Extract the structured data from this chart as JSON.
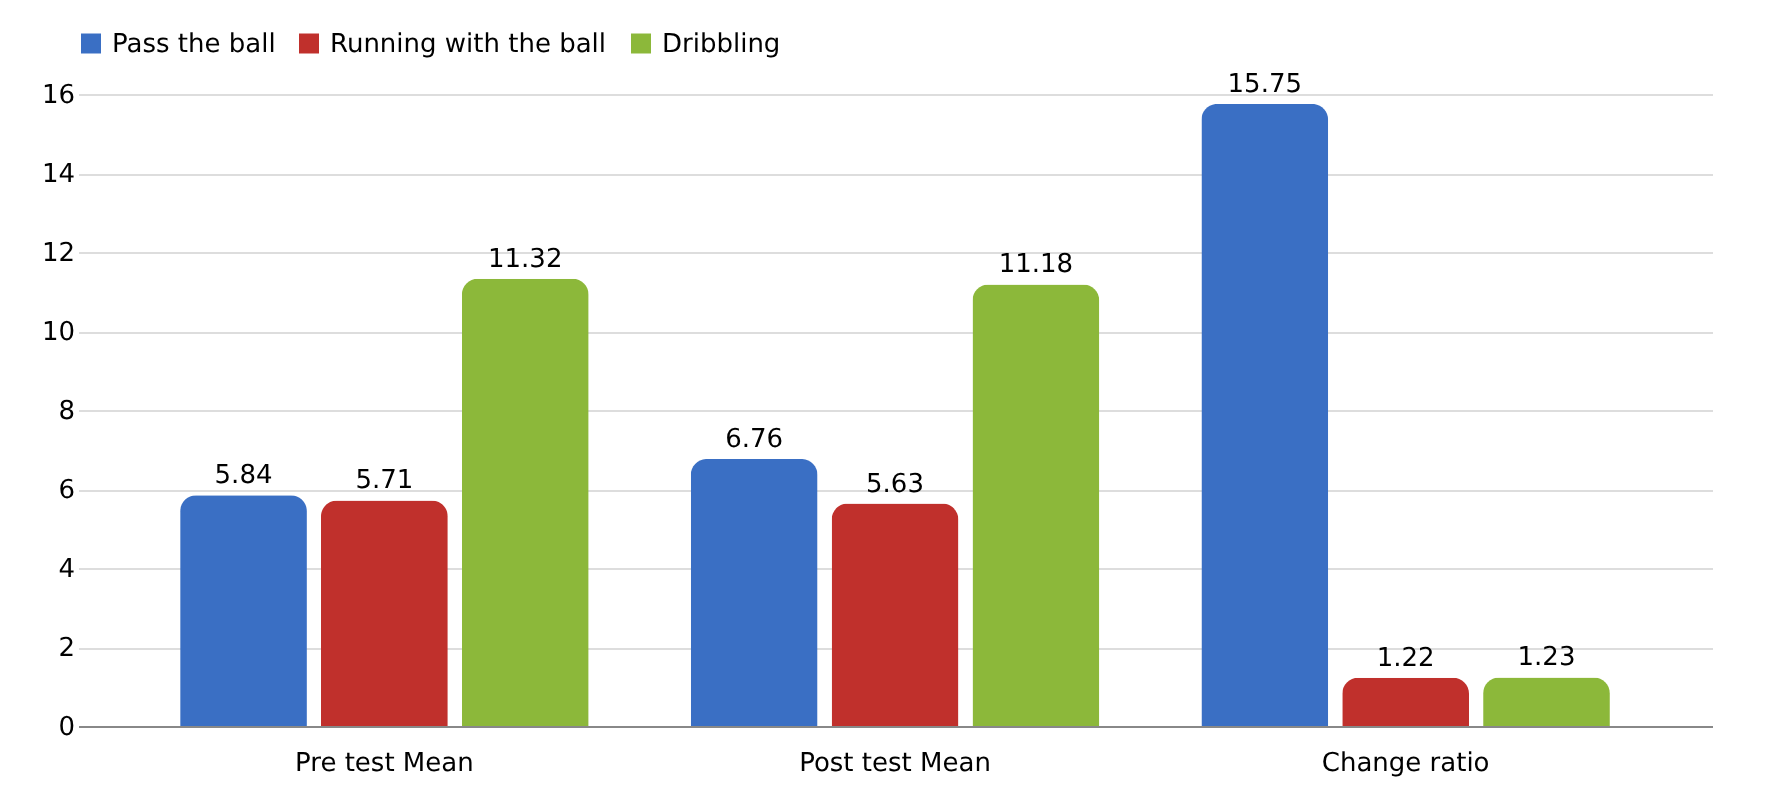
{
  "chart_data": {
    "type": "bar",
    "categories": [
      "Pre test Mean",
      "Post test Mean",
      "Change ratio"
    ],
    "series": [
      {
        "name": "Pass the ball",
        "color": "#3a6fc4",
        "values": [
          5.84,
          6.76,
          15.75
        ]
      },
      {
        "name": "Running with the ball",
        "color": "#c0302c",
        "values": [
          5.71,
          5.63,
          1.22
        ]
      },
      {
        "name": "Dribbling",
        "color": "#8cb83a",
        "values": [
          11.32,
          11.18,
          1.23
        ]
      }
    ],
    "ylim": [
      0,
      16
    ],
    "yticks": [
      0,
      2,
      4,
      6,
      8,
      10,
      12,
      14,
      16
    ],
    "grid": "y",
    "legend": "top",
    "data_labels": true
  }
}
